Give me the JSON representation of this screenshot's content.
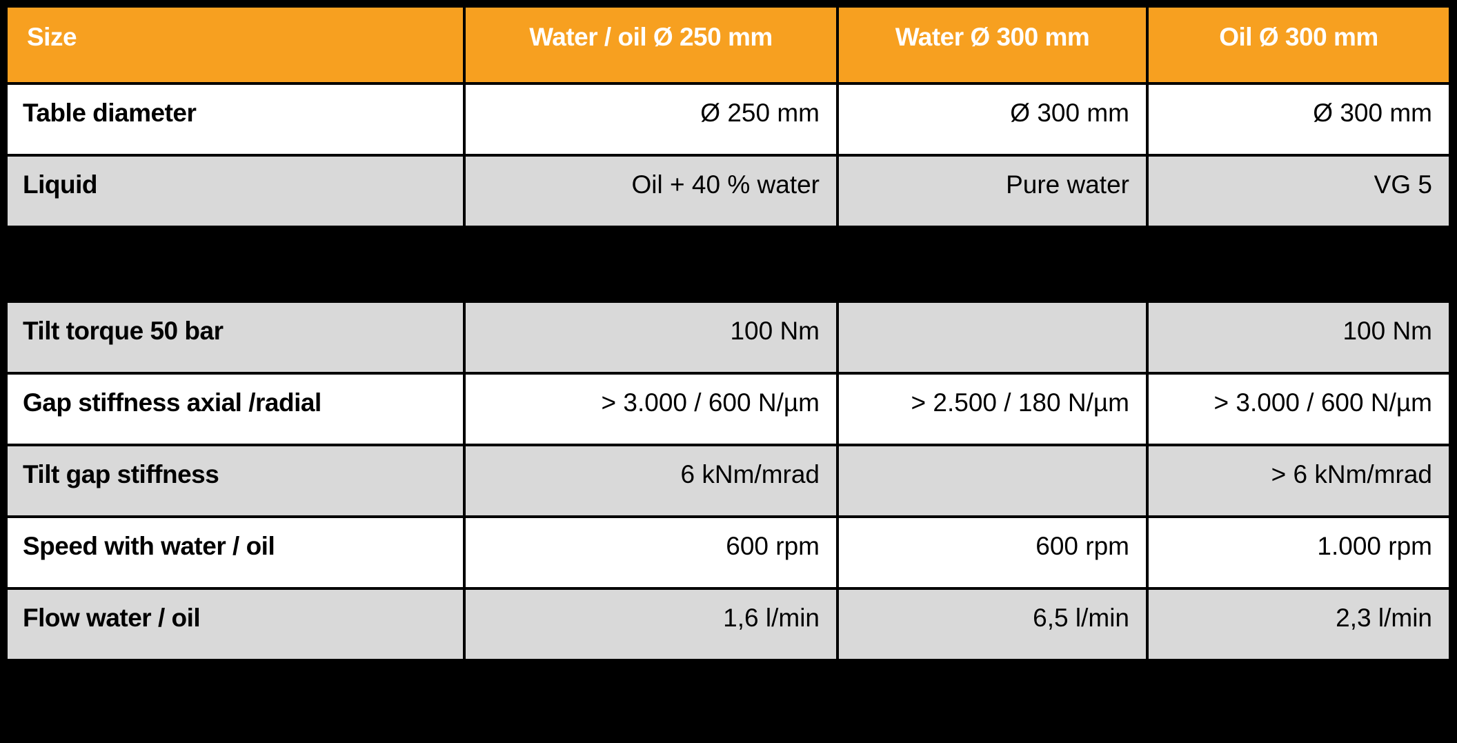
{
  "colors": {
    "header_bg": "#F7A020",
    "header_text": "#FFFFFF",
    "row_white": "#FFFFFF",
    "row_gray": "#D9D9D9",
    "border": "#000000",
    "background": "#000000"
  },
  "table": {
    "headers": [
      "Size",
      "Water / oil Ø 250 mm",
      "Water Ø 300 mm",
      "Oil Ø 300 mm"
    ],
    "section1": [
      {
        "label": "Table diameter",
        "values": [
          "Ø 250 mm",
          "Ø 300 mm",
          "Ø 300 mm"
        ],
        "shade": "white"
      },
      {
        "label": "Liquid",
        "values": [
          "Oil + 40 % water",
          "Pure water",
          "VG 5"
        ],
        "shade": "gray"
      }
    ],
    "section2": [
      {
        "label": "Tilt torque 50 bar",
        "values": [
          "100 Nm",
          "",
          "100 Nm"
        ],
        "shade": "gray"
      },
      {
        "label": "Gap stiffness axial /radial",
        "values": [
          "> 3.000 / 600 N/µm",
          "> 2.500 / 180 N/µm",
          "> 3.000 / 600 N/µm"
        ],
        "shade": "white"
      },
      {
        "label": "Tilt gap stiffness",
        "values": [
          "6 kNm/mrad",
          "",
          "> 6 kNm/mrad"
        ],
        "shade": "gray"
      },
      {
        "label": "Speed with water / oil",
        "values": [
          "600 rpm",
          "600 rpm",
          "1.000 rpm"
        ],
        "shade": "white"
      },
      {
        "label": "Flow water / oil",
        "values": [
          "1,6 l/min",
          "6,5 l/min",
          "2,3 l/min"
        ],
        "shade": "gray"
      }
    ]
  }
}
